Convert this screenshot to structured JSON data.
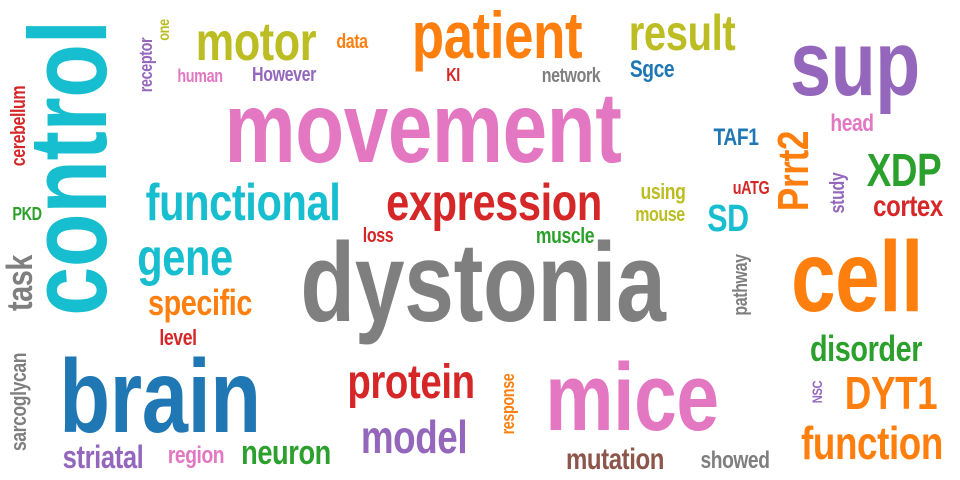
{
  "words": [
    {
      "text": "movement",
      "color": "#e377c2"
    },
    {
      "text": "dystonia",
      "color": "#7f7f7f"
    },
    {
      "text": "control",
      "color": "#17becf"
    },
    {
      "text": "brain",
      "color": "#1f77b4"
    },
    {
      "text": "cell",
      "color": "#ff7f0e"
    },
    {
      "text": "mice",
      "color": "#e377c2"
    },
    {
      "text": "sup",
      "color": "#9467bd"
    },
    {
      "text": "patient",
      "color": "#ff7f0e"
    },
    {
      "text": "expression",
      "color": "#d62728"
    },
    {
      "text": "functional",
      "color": "#17becf"
    },
    {
      "text": "protein",
      "color": "#d62728"
    },
    {
      "text": "model",
      "color": "#9467bd"
    },
    {
      "text": "function",
      "color": "#ff7f0e"
    },
    {
      "text": "result",
      "color": "#bcbd22"
    },
    {
      "text": "motor",
      "color": "#bcbd22"
    },
    {
      "text": "gene",
      "color": "#17becf"
    },
    {
      "text": "specific",
      "color": "#ff7f0e"
    },
    {
      "text": "Prrt2",
      "color": "#ff7f0e"
    },
    {
      "text": "XDP",
      "color": "#2ca02c"
    },
    {
      "text": "DYT1",
      "color": "#ff7f0e"
    },
    {
      "text": "disorder",
      "color": "#2ca02c"
    },
    {
      "text": "task",
      "color": "#7f7f7f"
    },
    {
      "text": "neuron",
      "color": "#2ca02c"
    },
    {
      "text": "cortex",
      "color": "#d62728"
    },
    {
      "text": "striatal",
      "color": "#9467bd"
    },
    {
      "text": "mutation",
      "color": "#8c564b"
    },
    {
      "text": "showed",
      "color": "#7f7f7f"
    },
    {
      "text": "SD",
      "color": "#17becf"
    },
    {
      "text": "region",
      "color": "#e377c2"
    },
    {
      "text": "human",
      "color": "#e377c2"
    },
    {
      "text": "However",
      "color": "#9467bd"
    },
    {
      "text": "data",
      "color": "#ff7f0e"
    },
    {
      "text": "one",
      "color": "#bcbd22"
    },
    {
      "text": "receptor",
      "color": "#9467bd"
    },
    {
      "text": "KI",
      "color": "#d62728"
    },
    {
      "text": "network",
      "color": "#7f7f7f"
    },
    {
      "text": "Sgce",
      "color": "#1f77b4"
    },
    {
      "text": "head",
      "color": "#e377c2"
    },
    {
      "text": "TAF1",
      "color": "#1f77b4"
    },
    {
      "text": "uATG",
      "color": "#d62728"
    },
    {
      "text": "study",
      "color": "#9467bd"
    },
    {
      "text": "using",
      "color": "#bcbd22"
    },
    {
      "text": "mouse",
      "color": "#bcbd22"
    },
    {
      "text": "muscle",
      "color": "#2ca02c"
    },
    {
      "text": "loss",
      "color": "#d62728"
    },
    {
      "text": "cerebellum",
      "color": "#d62728"
    },
    {
      "text": "PKD",
      "color": "#2ca02c"
    },
    {
      "text": "level",
      "color": "#d62728"
    },
    {
      "text": "pathway",
      "color": "#7f7f7f"
    },
    {
      "text": "sarcoglycan",
      "color": "#7f7f7f"
    },
    {
      "text": "response",
      "color": "#ff7f0e"
    },
    {
      "text": "NSC",
      "color": "#9467bd"
    }
  ]
}
